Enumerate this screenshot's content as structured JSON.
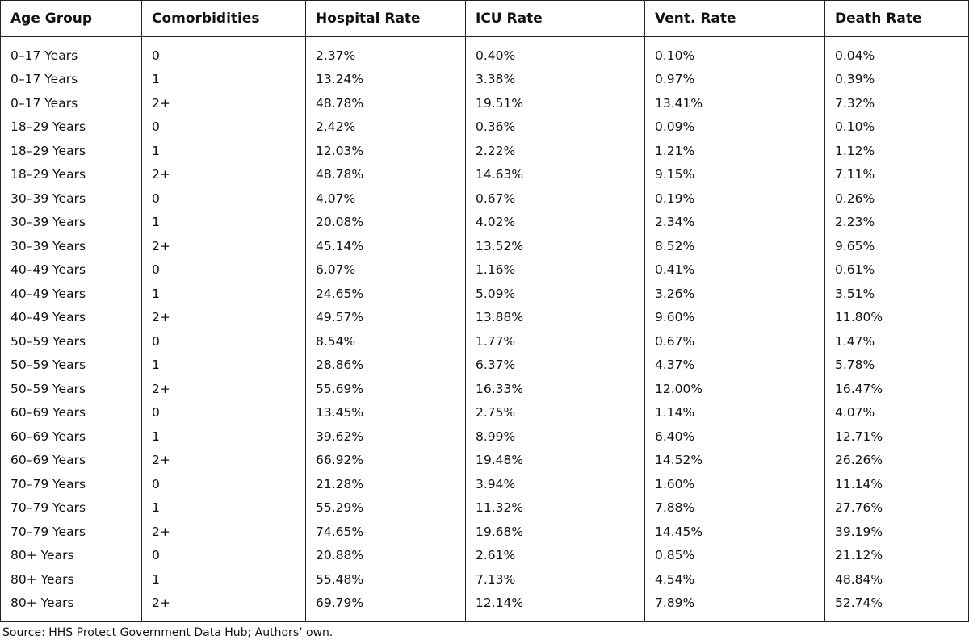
{
  "table": {
    "header": [
      "Age Group",
      "Comorbidities",
      "Hospital Rate",
      "ICU Rate",
      "Vent. Rate",
      "Death Rate"
    ],
    "rows": [
      [
        "0–17 Years",
        "0",
        "2.37%",
        "0.40%",
        "0.10%",
        "0.04%"
      ],
      [
        "0–17 Years",
        "1",
        "13.24%",
        "3.38%",
        "0.97%",
        "0.39%"
      ],
      [
        "0–17 Years",
        "2+",
        "48.78%",
        "19.51%",
        "13.41%",
        "7.32%"
      ],
      [
        "18–29 Years",
        "0",
        "2.42%",
        "0.36%",
        "0.09%",
        "0.10%"
      ],
      [
        "18–29 Years",
        "1",
        "12.03%",
        "2.22%",
        "1.21%",
        "1.12%"
      ],
      [
        "18–29 Years",
        "2+",
        "48.78%",
        "14.63%",
        "9.15%",
        "7.11%"
      ],
      [
        "30–39 Years",
        "0",
        "4.07%",
        "0.67%",
        "0.19%",
        "0.26%"
      ],
      [
        "30–39 Years",
        "1",
        "20.08%",
        "4.02%",
        "2.34%",
        "2.23%"
      ],
      [
        "30–39 Years",
        "2+",
        "45.14%",
        "13.52%",
        "8.52%",
        "9.65%"
      ],
      [
        "40–49 Years",
        "0",
        "6.07%",
        "1.16%",
        "0.41%",
        "0.61%"
      ],
      [
        "40–49 Years",
        "1",
        "24.65%",
        "5.09%",
        "3.26%",
        "3.51%"
      ],
      [
        "40–49 Years",
        "2+",
        "49.57%",
        "13.88%",
        "9.60%",
        "11.80%"
      ],
      [
        "50–59 Years",
        "0",
        "8.54%",
        "1.77%",
        "0.67%",
        "1.47%"
      ],
      [
        "50–59 Years",
        "1",
        "28.86%",
        "6.37%",
        "4.37%",
        "5.78%"
      ],
      [
        "50–59 Years",
        "2+",
        "55.69%",
        "16.33%",
        "12.00%",
        "16.47%"
      ],
      [
        "60–69 Years",
        "0",
        "13.45%",
        "2.75%",
        "1.14%",
        "4.07%"
      ],
      [
        "60–69 Years",
        "1",
        "39.62%",
        "8.99%",
        "6.40%",
        "12.71%"
      ],
      [
        "60–69 Years",
        "2+",
        "66.92%",
        "19.48%",
        "14.52%",
        "26.26%"
      ],
      [
        "70–79 Years",
        "0",
        "21.28%",
        "3.94%",
        "1.60%",
        "11.14%"
      ],
      [
        "70–79 Years",
        "1",
        "55.29%",
        "11.32%",
        "7.88%",
        "27.76%"
      ],
      [
        "70–79 Years",
        "2+",
        "74.65%",
        "19.68%",
        "14.45%",
        "39.19%"
      ],
      [
        "80+ Years",
        "0",
        "20.88%",
        "2.61%",
        "0.85%",
        "21.12%"
      ],
      [
        "80+ Years",
        "1",
        "55.48%",
        "7.13%",
        "4.54%",
        "48.84%"
      ],
      [
        "80+ Years",
        "2+",
        "69.79%",
        "12.14%",
        "7.89%",
        "52.74%"
      ]
    ]
  },
  "source": "Source: HHS Protect Government Data Hub; Authors’ own."
}
